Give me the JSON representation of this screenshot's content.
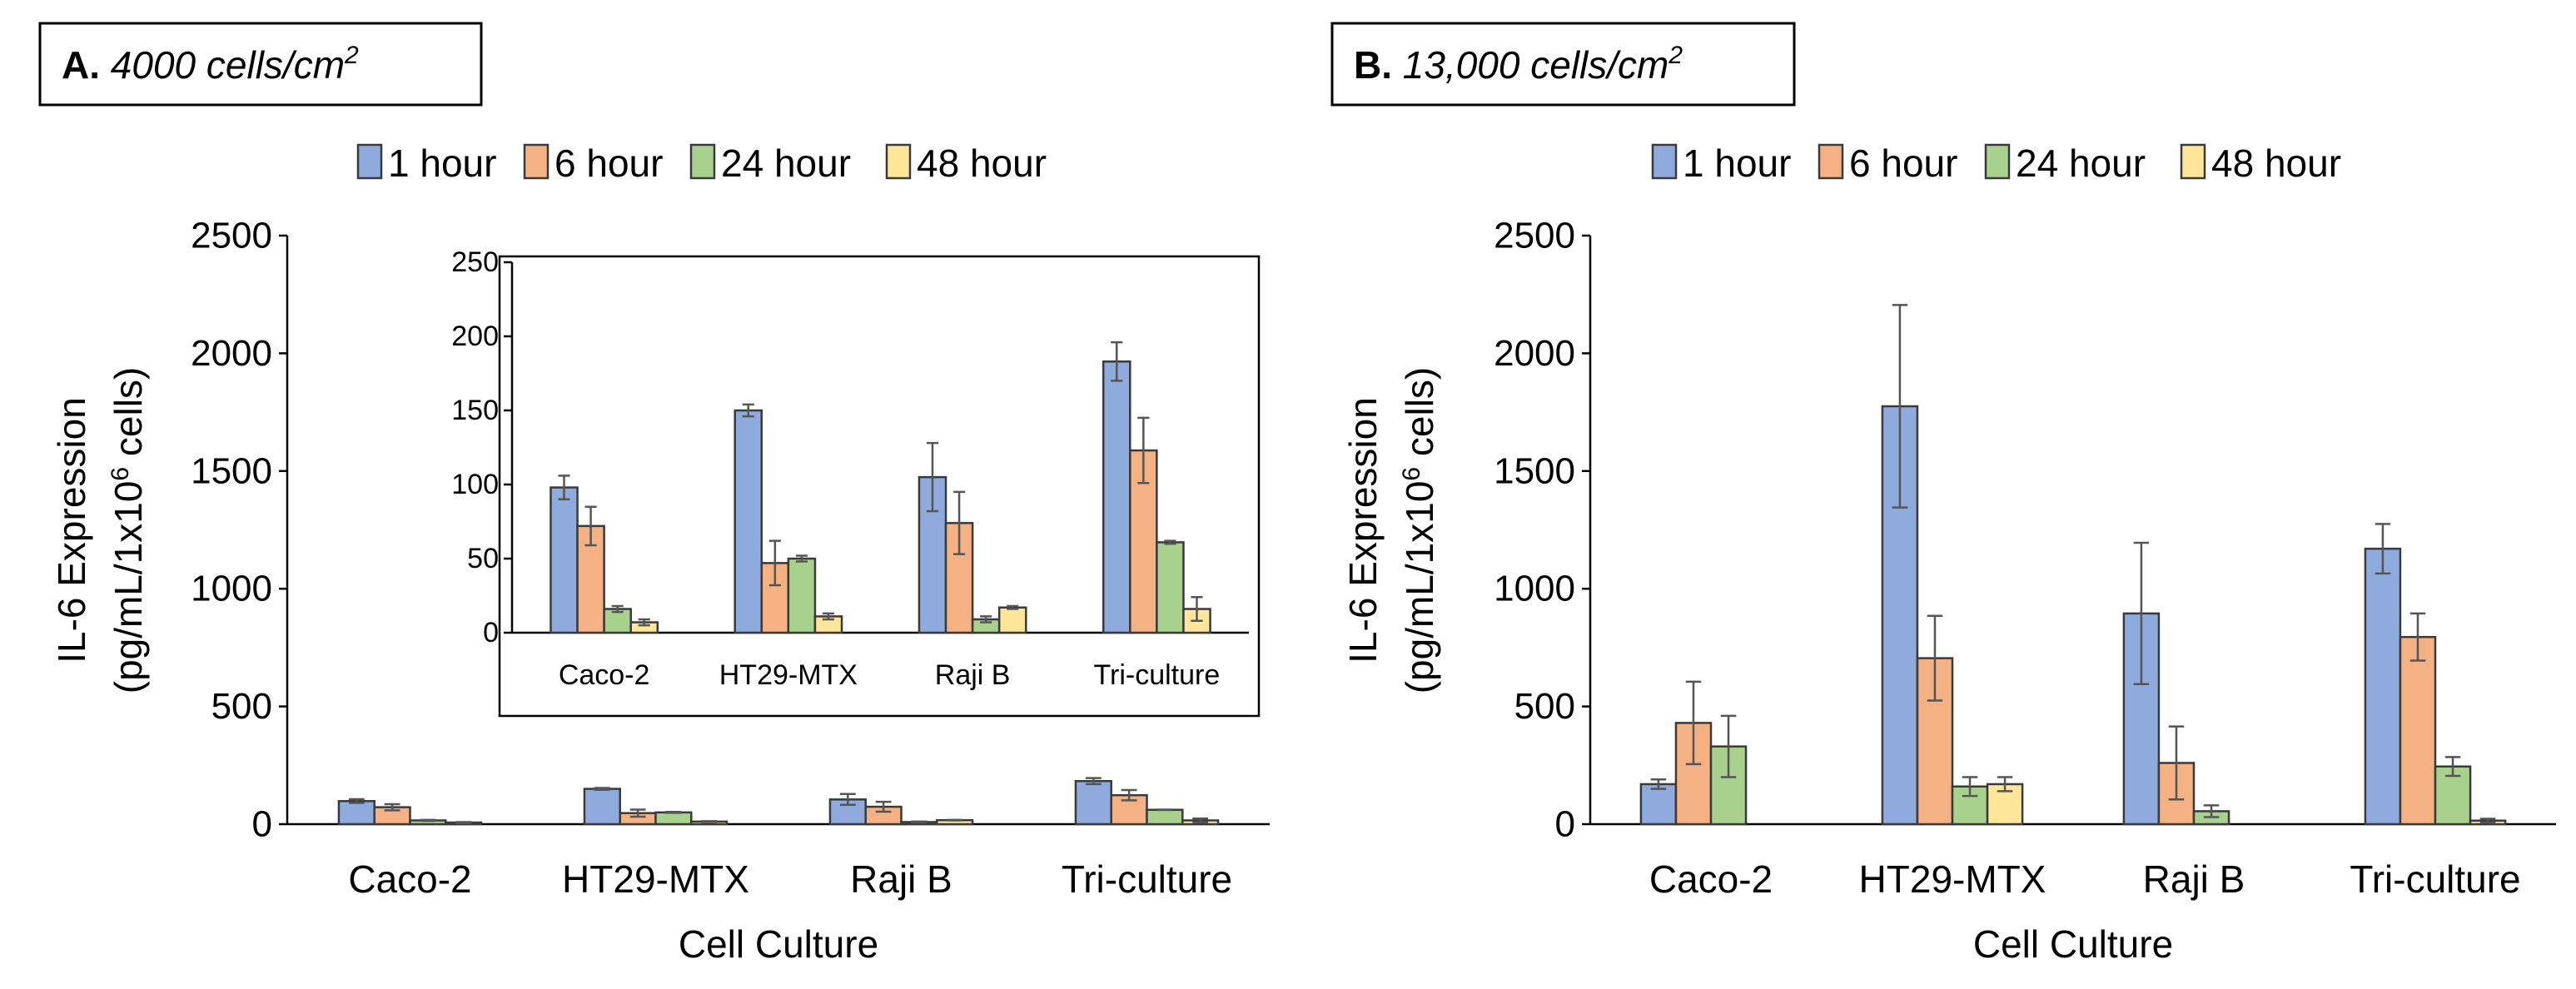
{
  "series_colors": [
    "#8faadc",
    "#f4b183",
    "#a9d18e",
    "#ffe699"
  ],
  "chart_data": [
    {
      "type": "bar",
      "panel_letter": "A.",
      "title": "4000 cells/cm",
      "title_sup": "2",
      "xlabel": "Cell Culture",
      "ylabel": "IL-6 Expression",
      "ylabel2_pre": "(pg/mL/1x10",
      "ylabel2_sup": "6",
      "ylabel2_post": " cells)",
      "ylim": [
        0,
        2500
      ],
      "yticks": [
        "0",
        "500",
        "1000",
        "1500",
        "2000",
        "2500"
      ],
      "legend_position": "top",
      "categories": [
        "Caco-2",
        "HT29-MTX",
        "Raji B",
        "Tri-culture"
      ],
      "series": [
        {
          "name": "1 hour",
          "values": [
            98,
            150,
            105,
            183
          ],
          "errors": [
            8,
            4,
            23,
            13
          ]
        },
        {
          "name": "6 hour",
          "values": [
            72,
            47,
            74,
            123
          ],
          "errors": [
            13,
            15,
            21,
            22
          ]
        },
        {
          "name": "24 hour",
          "values": [
            16,
            50,
            9,
            61
          ],
          "errors": [
            2,
            2,
            2,
            1
          ]
        },
        {
          "name": "48 hour",
          "values": [
            7,
            11,
            17,
            16
          ],
          "errors": [
            2,
            2,
            1,
            8
          ]
        }
      ],
      "inset": {
        "ylim": [
          0,
          250
        ],
        "yticks": [
          "0",
          "50",
          "100",
          "150",
          "200",
          "250"
        ]
      }
    },
    {
      "type": "bar",
      "panel_letter": "B.",
      "title": "13,000 cells/cm",
      "title_sup": "2",
      "xlabel": "Cell Culture",
      "ylabel": "IL-6 Expression",
      "ylabel2_pre": "(pg/mL/1x10",
      "ylabel2_sup": "6",
      "ylabel2_post": " cells)",
      "ylim": [
        0,
        2500
      ],
      "yticks": [
        "0",
        "500",
        "1000",
        "1500",
        "2000",
        "2500"
      ],
      "legend_position": "top",
      "categories": [
        "Caco-2",
        "HT29-MTX",
        "Raji B",
        "Tri-culture"
      ],
      "series": [
        {
          "name": "1 hour",
          "values": [
            170,
            1775,
            895,
            1170
          ],
          "errors": [
            20,
            430,
            300,
            105
          ]
        },
        {
          "name": "6 hour",
          "values": [
            430,
            705,
            260,
            795
          ],
          "errors": [
            175,
            180,
            155,
            100
          ]
        },
        {
          "name": "24 hour",
          "values": [
            330,
            160,
            55,
            245
          ],
          "errors": [
            130,
            40,
            25,
            40
          ]
        },
        {
          "name": "48 hour",
          "values": [
            0,
            170,
            0,
            15
          ],
          "errors": [
            0,
            30,
            0,
            8
          ]
        }
      ]
    }
  ]
}
